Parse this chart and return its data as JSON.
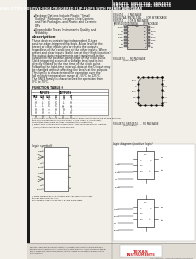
{
  "bg_color": "#f2efe9",
  "text_color": "#1a1a1a",
  "top_bar_color": "#1a1a1a",
  "left_bar_color": "#1a1a1a",
  "title_right1": "SN5474, SN54L74A, SN54S74",
  "title_right2": "SN7474, SN74L74A, SN74S74",
  "title_main": "DUAL D-TYPE POSITIVE-EDGE-TRIGGERED FLIP-FLOPS WITH PRESET AND CLEAR",
  "title_sub": "JM38510/00205BDA",
  "bullet1": "Package Options Include Plastic \"Small Outline\" Packages, Ceramic Chip Carriers and Flat Packages, and Plastic and Ceramic DIPs",
  "bullet2": "Dependable Texas Instruments Quality and Reliability",
  "desc_title": "description",
  "pkg1_label": "SN5474 . . . J PACKAGE",
  "pkg2_label": "SN54L74A, SN5474 . . . J OR W PACKAGE",
  "pkg3_label": "SN7474 . . . J OR N PACKAGE",
  "pkg4_label": "JM38510/00205BDA . . . W PACKAGE",
  "pkg5_label": "SN54S74 . . . FK PACKAGE",
  "top_view": "(TOP VIEW)",
  "logic_sym_label": "logic symbol",
  "logic_diag_label": "logic diagram (positive logic)",
  "footer_copyright": "Copyright 1988, Texas Instruments Incorporated"
}
